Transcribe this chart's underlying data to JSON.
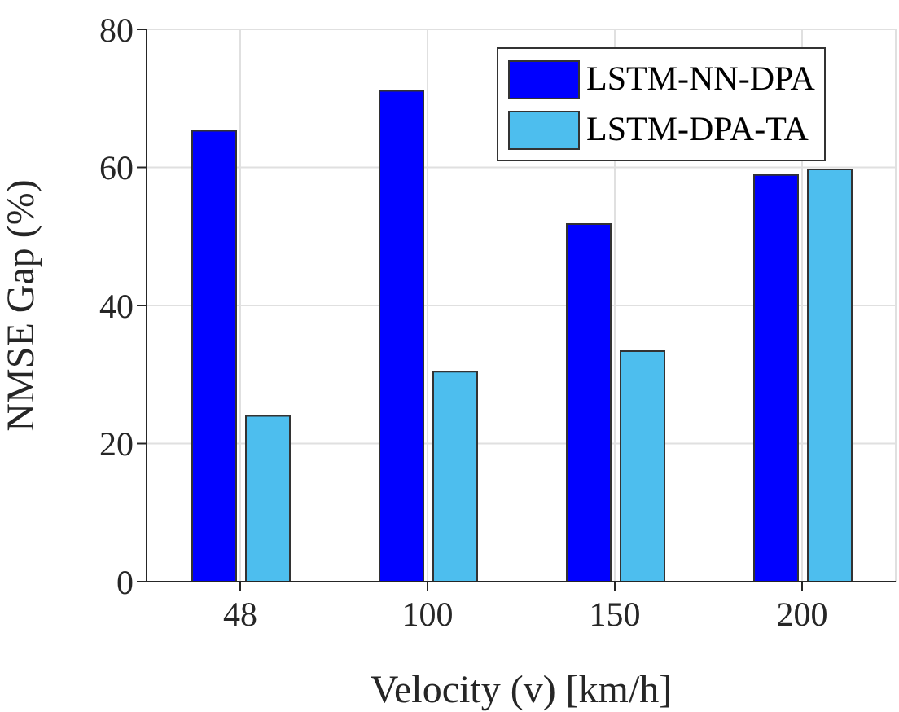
{
  "chart_data": {
    "type": "bar",
    "xlabel": "Velocity (v) [km/h]",
    "ylabel": "NMSE Gap (%)",
    "categories": [
      "48",
      "100",
      "150",
      "200"
    ],
    "series": [
      {
        "name": "LSTM-NN-DPA",
        "color": "#0000ff",
        "values": [
          65.3,
          71.1,
          51.8,
          58.9
        ]
      },
      {
        "name": "LSTM-DPA-TA",
        "color": "#4dbeee",
        "values": [
          24.0,
          30.4,
          33.4,
          59.7
        ]
      }
    ],
    "ylim": [
      0,
      80
    ],
    "yticks": [
      0,
      20,
      40,
      60,
      80
    ],
    "grid": true,
    "legend": "top right"
  }
}
